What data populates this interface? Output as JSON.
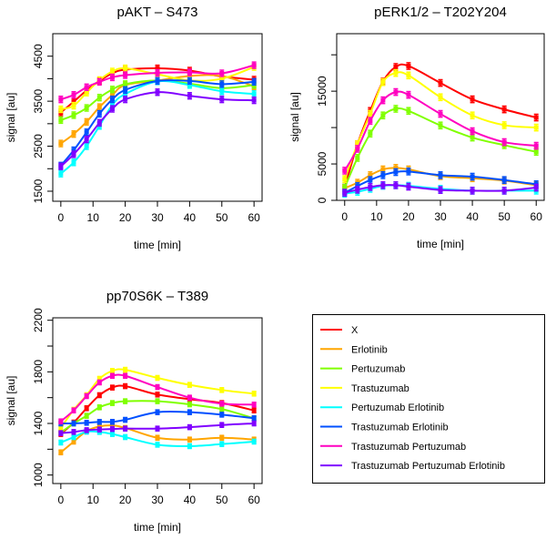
{
  "chart_data": [
    {
      "type": "line",
      "title": "pAKT – S473",
      "xlabel": "time [min]",
      "ylabel": "signal [au]",
      "x": [
        0,
        4,
        8,
        12,
        16,
        20,
        30,
        40,
        50,
        60
      ],
      "xticks": [
        0,
        10,
        20,
        30,
        40,
        50,
        60
      ],
      "yticks": [
        1500,
        2000,
        2500,
        3000,
        3500,
        4000,
        4500
      ],
      "ytick_labels": [
        "1500",
        "",
        "2500",
        "",
        "3500",
        "",
        "4500"
      ],
      "ylim": [
        1277,
        5000
      ],
      "xlim": [
        -2.5,
        62.5
      ],
      "error": 70,
      "series": [
        {
          "name": "X",
          "values": [
            3250,
            3490,
            3740,
            3950,
            4120,
            4200,
            4230,
            4180,
            4050,
            3980
          ]
        },
        {
          "name": "Erlotinib",
          "values": [
            2560,
            2770,
            3040,
            3370,
            3640,
            3860,
            3960,
            4060,
            4060,
            3830
          ]
        },
        {
          "name": "Pertuzumab",
          "values": [
            3080,
            3190,
            3350,
            3580,
            3760,
            3880,
            3960,
            3890,
            3790,
            3860
          ]
        },
        {
          "name": "Trastuzumab",
          "values": [
            3320,
            3400,
            3690,
            3970,
            4160,
            4230,
            4100,
            3960,
            4000,
            4260
          ]
        },
        {
          "name": "Pertuzumab Erlotinib",
          "values": [
            1890,
            2140,
            2500,
            2950,
            3420,
            3660,
            3940,
            3860,
            3720,
            3660
          ]
        },
        {
          "name": "Trastuzumab Erlotinib",
          "values": [
            2070,
            2410,
            2810,
            3220,
            3540,
            3750,
            3950,
            3950,
            3880,
            3930
          ]
        },
        {
          "name": "Trastuzumab Pertuzumab",
          "values": [
            3540,
            3640,
            3810,
            3930,
            4030,
            4080,
            4130,
            4140,
            4120,
            4300
          ]
        },
        {
          "name": "Trastuzumab Pertuzumab Erlotinib",
          "values": [
            2050,
            2320,
            2650,
            3020,
            3330,
            3540,
            3700,
            3620,
            3540,
            3520
          ]
        }
      ]
    },
    {
      "type": "line",
      "title": "pERK1/2 – T202Y204",
      "xlabel": "time [min]",
      "ylabel": "signal [au]",
      "x": [
        0,
        4,
        8,
        12,
        16,
        20,
        30,
        40,
        50,
        60
      ],
      "xticks": [
        0,
        10,
        20,
        30,
        40,
        50,
        60
      ],
      "yticks": [
        0,
        5000,
        10000,
        15000,
        20000
      ],
      "ytick_labels": [
        "0",
        "5000",
        "",
        "15000",
        ""
      ],
      "ylim": [
        0,
        22900
      ],
      "xlim": [
        -2.5,
        62.5
      ],
      "error": 450,
      "series": [
        {
          "name": "X",
          "values": [
            1750,
            7710,
            12290,
            16330,
            18330,
            18460,
            16130,
            13880,
            12500,
            11380
          ]
        },
        {
          "name": "Erlotinib",
          "values": [
            1670,
            2420,
            3460,
            4250,
            4460,
            4250,
            3330,
            3040,
            2710,
            2080
          ]
        },
        {
          "name": "Pertuzumab",
          "values": [
            1750,
            5830,
            9170,
            11670,
            12580,
            12290,
            10290,
            8630,
            7580,
            6670
          ]
        },
        {
          "name": "Trastuzumab",
          "values": [
            2920,
            7710,
            11880,
            16250,
            17500,
            17170,
            14170,
            11670,
            10330,
            10000
          ]
        },
        {
          "name": "Pertuzumab Erlotinib",
          "values": [
            920,
            1170,
            1580,
            2000,
            2080,
            2000,
            1580,
            1330,
            1330,
            1330
          ]
        },
        {
          "name": "Trastuzumab Erlotinib",
          "values": [
            1040,
            1960,
            2790,
            3460,
            3880,
            3960,
            3460,
            3250,
            2790,
            2210
          ]
        },
        {
          "name": "Trastuzumab Pertuzumab",
          "values": [
            4080,
            7080,
            10920,
            13750,
            14880,
            14500,
            11880,
            9500,
            8000,
            7500
          ]
        },
        {
          "name": "Trastuzumab Pertuzumab Erlotinib",
          "values": [
            1040,
            1460,
            1830,
            2080,
            2080,
            1880,
            1420,
            1330,
            1330,
            1750
          ]
        }
      ]
    },
    {
      "type": "line",
      "title": "pp70S6K – T389",
      "xlabel": "time [min]",
      "ylabel": "signal [au]",
      "x": [
        0,
        4,
        8,
        12,
        16,
        20,
        30,
        40,
        50,
        60
      ],
      "xticks": [
        0,
        10,
        20,
        30,
        40,
        50,
        60
      ],
      "yticks": [
        1000,
        1200,
        1400,
        1600,
        1800,
        2000,
        2200
      ],
      "ytick_labels": [
        "1000",
        "",
        "1400",
        "",
        "1800",
        "",
        "2200"
      ],
      "ylim": [
        934,
        2219
      ],
      "xlim": [
        -2.5,
        62.5
      ],
      "error": 18,
      "series": [
        {
          "name": "X",
          "values": [
            1318,
            1407,
            1518,
            1619,
            1678,
            1689,
            1624,
            1588,
            1558,
            1501
          ]
        },
        {
          "name": "Erlotinib",
          "values": [
            1176,
            1259,
            1341,
            1376,
            1384,
            1365,
            1289,
            1275,
            1289,
            1275
          ]
        },
        {
          "name": "Pertuzumab",
          "values": [
            1329,
            1400,
            1459,
            1525,
            1558,
            1572,
            1572,
            1548,
            1511,
            1440
          ]
        },
        {
          "name": "Trastuzumab",
          "values": [
            1365,
            1506,
            1619,
            1746,
            1807,
            1816,
            1753,
            1699,
            1659,
            1631
          ]
        },
        {
          "name": "Pertuzumab Erlotinib",
          "values": [
            1252,
            1294,
            1336,
            1334,
            1318,
            1294,
            1235,
            1224,
            1240,
            1259
          ]
        },
        {
          "name": "Trastuzumab Erlotinib",
          "values": [
            1400,
            1400,
            1405,
            1412,
            1412,
            1428,
            1487,
            1487,
            1468,
            1440
          ]
        },
        {
          "name": "Trastuzumab Pertuzumab",
          "values": [
            1416,
            1501,
            1612,
            1718,
            1769,
            1769,
            1682,
            1600,
            1553,
            1546
          ]
        },
        {
          "name": "Trastuzumab Pertuzumab Erlotinib",
          "values": [
            1325,
            1334,
            1348,
            1353,
            1357,
            1360,
            1360,
            1371,
            1388,
            1400
          ]
        }
      ]
    }
  ],
  "legend": {
    "placement": "bottom-right",
    "entries": [
      "X",
      "Erlotinib",
      "Pertuzumab",
      "Trastuzumab",
      "Pertuzumab Erlotinib",
      "Trastuzumab Erlotinib",
      "Trastuzumab Pertuzumab",
      "Trastuzumab Pertuzumab Erlotinib"
    ],
    "colors": [
      "#ff0000",
      "#ffa500",
      "#80ff00",
      "#ffff00",
      "#00ffff",
      "#0050ff",
      "#ff00c0",
      "#8000ff"
    ]
  }
}
